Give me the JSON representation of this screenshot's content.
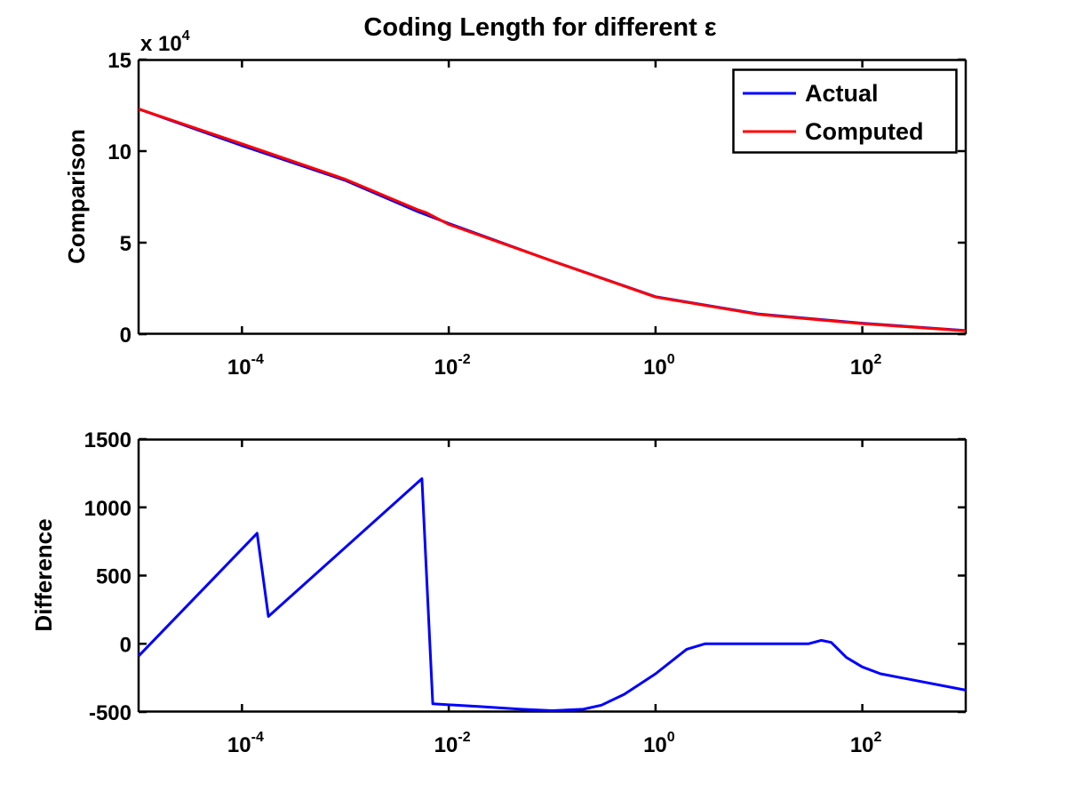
{
  "figure": {
    "title": "Coding Length for different ε"
  },
  "chart_data": [
    {
      "type": "line",
      "title": "Coding Length for different ε",
      "xscale": "log",
      "xlim": [
        1e-05,
        1000
      ],
      "x_tick_values": [
        0.0001,
        0.01,
        1,
        100
      ],
      "x_tick_labels": [
        {
          "base": "10",
          "exp": "-4"
        },
        {
          "base": "10",
          "exp": "-2"
        },
        {
          "base": "10",
          "exp": "0"
        },
        {
          "base": "10",
          "exp": "2"
        }
      ],
      "ylabel": "Comparison",
      "ylim": [
        0,
        150000
      ],
      "y_ticks": [
        0,
        50000,
        100000,
        150000
      ],
      "y_tick_labels": [
        "0",
        "5",
        "10",
        "15"
      ],
      "y_multiplier": {
        "text": "x 10",
        "exp": "4"
      },
      "legend": {
        "position": "top-right"
      },
      "series": [
        {
          "name": "Actual",
          "color": "#0000ff",
          "points": [
            [
              1e-05,
              123000
            ],
            [
              0.0001,
              103000
            ],
            [
              0.001,
              84000
            ],
            [
              0.005,
              67000
            ],
            [
              0.01,
              60500
            ],
            [
              0.1,
              40000
            ],
            [
              1,
              20500
            ],
            [
              10,
              11000
            ],
            [
              100,
              6000
            ],
            [
              1000,
              2000
            ]
          ]
        },
        {
          "name": "Computed",
          "color": "#ff0000",
          "points": [
            [
              1e-05,
              123000
            ],
            [
              0.0001,
              104000
            ],
            [
              0.001,
              84600
            ],
            [
              0.005,
              68000
            ],
            [
              0.006,
              66500
            ],
            [
              0.01,
              60000
            ],
            [
              0.1,
              40000
            ],
            [
              1,
              20300
            ],
            [
              10,
              10800
            ],
            [
              100,
              5800
            ],
            [
              1000,
              1800
            ]
          ]
        }
      ]
    },
    {
      "type": "line",
      "xscale": "log",
      "xlim": [
        1e-05,
        1000
      ],
      "x_tick_values": [
        0.0001,
        0.01,
        1,
        100
      ],
      "x_tick_labels": [
        {
          "base": "10",
          "exp": "-4"
        },
        {
          "base": "10",
          "exp": "-2"
        },
        {
          "base": "10",
          "exp": "0"
        },
        {
          "base": "10",
          "exp": "2"
        }
      ],
      "ylabel": "Difference",
      "ylim": [
        -500,
        1500
      ],
      "y_ticks": [
        -500,
        0,
        500,
        1000,
        1500
      ],
      "y_tick_labels": [
        "-500",
        "0",
        "500",
        "1000",
        "1500"
      ],
      "series": [
        {
          "color": "#0000ff",
          "points": [
            [
              1e-05,
              -90
            ],
            [
              0.00014,
              810
            ],
            [
              0.00018,
              200
            ],
            [
              0.0055,
              1210
            ],
            [
              0.007,
              -440
            ],
            [
              0.02,
              -460
            ],
            [
              0.05,
              -480
            ],
            [
              0.1,
              -490
            ],
            [
              0.2,
              -480
            ],
            [
              0.3,
              -450
            ],
            [
              0.5,
              -370
            ],
            [
              1,
              -220
            ],
            [
              2,
              -40
            ],
            [
              3,
              0
            ],
            [
              10,
              0
            ],
            [
              30,
              0
            ],
            [
              40,
              25
            ],
            [
              50,
              10
            ],
            [
              70,
              -100
            ],
            [
              100,
              -170
            ],
            [
              150,
              -220
            ],
            [
              1000,
              -340
            ]
          ]
        }
      ]
    }
  ]
}
